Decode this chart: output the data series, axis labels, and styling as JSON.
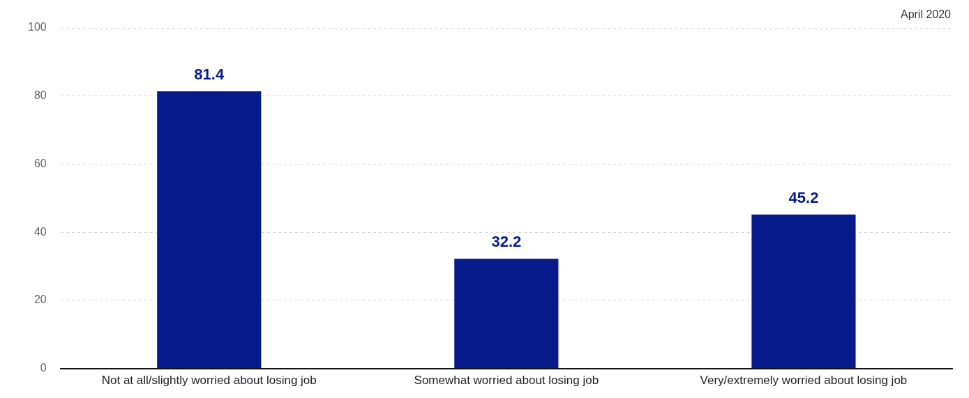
{
  "chart_data": {
    "type": "bar",
    "categories": [
      "Not at all/slightly worried about losing job",
      "Somewhat worried about losing job",
      "Very/extremely worried about losing job"
    ],
    "values": [
      81.4,
      32.2,
      45.2
    ],
    "color": "#061a8c",
    "ylim": [
      0,
      100
    ],
    "yticks": [
      0,
      20,
      40,
      60,
      80,
      100
    ],
    "grid": "y",
    "data_labels": true,
    "legend": false,
    "annotations": [
      "April 2020"
    ]
  }
}
